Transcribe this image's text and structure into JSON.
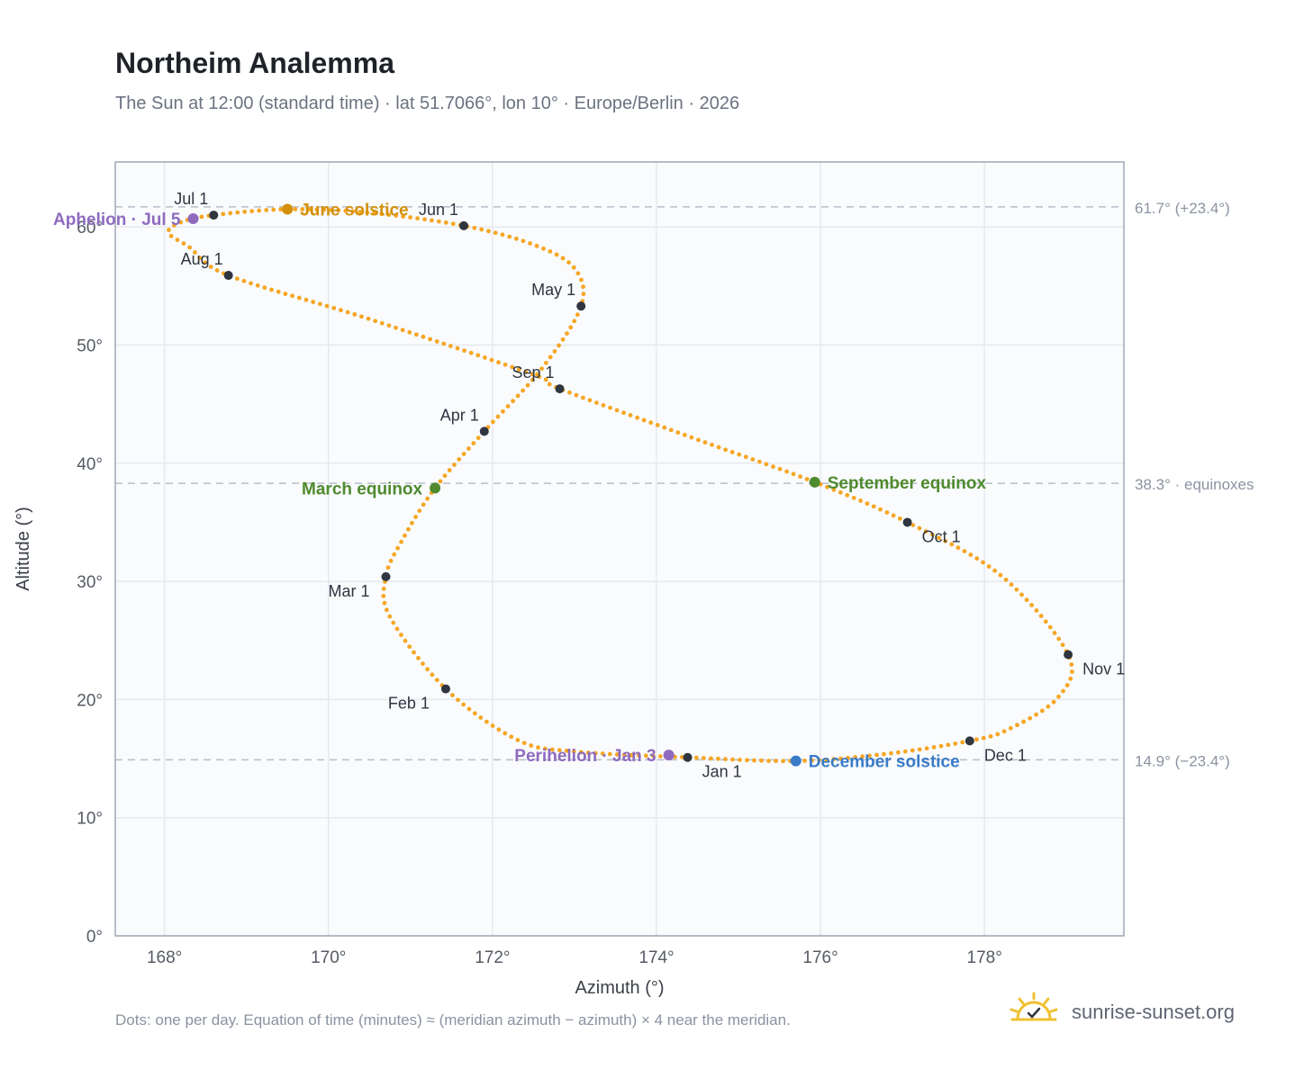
{
  "title": "Northeim Analemma",
  "subtitle": "The Sun at 12:00 (standard time) · lat 51.7066°, lon 10° · Europe/Berlin · 2026",
  "footnote": "Dots: one per day. Equation of time (minutes) ≈ (meridian azimuth − azimuth) × 4 near the meridian.",
  "brand": {
    "text": "sunrise-sunset.org",
    "icon": "sun-check-icon",
    "color": "#f0c030"
  },
  "colors": {
    "path": "#f5a623",
    "month_marker": "#2f3640",
    "solstice_june": "#d4900a",
    "solstice_december": "#3a7bc8",
    "equinox": "#4f8a2e",
    "apsis": "#8e6bbf",
    "guide": "#b8bec8",
    "grid": "#e6e9ee",
    "plot_bg": "#f9fbfd",
    "frame": "#a0a8b6"
  },
  "chart_data": {
    "type": "scatter",
    "xlabel": "Azimuth (°)",
    "ylabel": "Altitude (°)",
    "xlim": [
      167.4,
      179.7
    ],
    "ylim": [
      0,
      65.5
    ],
    "xticks": [
      168,
      170,
      172,
      174,
      176,
      178
    ],
    "xtick_labels": [
      "168°",
      "170°",
      "172°",
      "174°",
      "176°",
      "178°"
    ],
    "yticks": [
      0,
      10,
      20,
      30,
      40,
      50,
      60
    ],
    "ytick_labels": [
      "0°",
      "10°",
      "20°",
      "30°",
      "40°",
      "50°",
      "60°"
    ],
    "grid": true,
    "reference_lines": [
      {
        "y": 61.7,
        "label": "61.7° (+23.4°)"
      },
      {
        "y": 38.3,
        "label": "38.3° · equinoxes"
      },
      {
        "y": 14.9,
        "label": "14.9° (−23.4°)"
      }
    ],
    "path": {
      "name": "daily sun position",
      "dots_per_day": 1,
      "keypoints": [
        [
          174.4,
          15.1
        ],
        [
          173.0,
          15.6
        ],
        [
          172.3,
          16.6
        ],
        [
          171.43,
          20.9
        ],
        [
          170.75,
          27.0
        ],
        [
          170.7,
          30.4
        ],
        [
          170.9,
          33.5
        ],
        [
          171.3,
          37.9
        ],
        [
          171.9,
          42.7
        ],
        [
          172.6,
          48.0
        ],
        [
          173.08,
          53.3
        ],
        [
          173.0,
          56.5
        ],
        [
          172.5,
          58.5
        ],
        [
          171.65,
          60.1
        ],
        [
          170.5,
          61.2
        ],
        [
          169.5,
          61.5
        ],
        [
          168.6,
          61.0
        ],
        [
          168.2,
          60.4
        ],
        [
          168.05,
          59.5
        ],
        [
          168.3,
          58.3
        ],
        [
          168.78,
          55.9
        ],
        [
          170.5,
          52.2
        ],
        [
          172.5,
          47.5
        ],
        [
          172.82,
          46.3
        ],
        [
          174.5,
          42.0
        ],
        [
          175.93,
          38.4
        ],
        [
          177.06,
          35.0
        ],
        [
          178.2,
          30.5
        ],
        [
          179.02,
          23.8
        ],
        [
          178.9,
          20.2
        ],
        [
          178.3,
          17.5
        ],
        [
          177.82,
          16.5
        ],
        [
          176.8,
          15.4
        ],
        [
          175.7,
          14.8
        ],
        [
          174.4,
          15.1
        ]
      ],
      "color": "#f5a623"
    },
    "month_markers": [
      {
        "label": "Jan 1",
        "x": 174.38,
        "y": 15.1,
        "label_pos": "below-right"
      },
      {
        "label": "Feb 1",
        "x": 171.43,
        "y": 20.9,
        "label_pos": "below-left"
      },
      {
        "label": "Mar 1",
        "x": 170.7,
        "y": 30.4,
        "label_pos": "below-left"
      },
      {
        "label": "Apr 1",
        "x": 171.9,
        "y": 42.7,
        "label_pos": "above-left"
      },
      {
        "label": "May 1",
        "x": 173.08,
        "y": 53.3,
        "label_pos": "above-left"
      },
      {
        "label": "Jun 1",
        "x": 171.65,
        "y": 60.1,
        "label_pos": "above-left"
      },
      {
        "label": "Jul 1",
        "x": 168.6,
        "y": 61.0,
        "label_pos": "above-left"
      },
      {
        "label": "Aug 1",
        "x": 168.78,
        "y": 55.9,
        "label_pos": "above-left"
      },
      {
        "label": "Sep 1",
        "x": 172.82,
        "y": 46.3,
        "label_pos": "above-left"
      },
      {
        "label": "Oct 1",
        "x": 177.06,
        "y": 35.0,
        "label_pos": "below-right"
      },
      {
        "label": "Nov 1",
        "x": 179.02,
        "y": 23.8,
        "label_pos": "below-right"
      },
      {
        "label": "Dec 1",
        "x": 177.82,
        "y": 16.5,
        "label_pos": "below-right"
      }
    ],
    "events": [
      {
        "label": "June solstice",
        "x": 169.5,
        "y": 61.5,
        "color": "#d4900a",
        "label_pos": "right"
      },
      {
        "label": "December solstice",
        "x": 175.7,
        "y": 14.8,
        "color": "#3a7bc8",
        "label_pos": "right"
      },
      {
        "label": "March equinox",
        "x": 171.3,
        "y": 37.9,
        "color": "#4f8a2e",
        "label_pos": "left"
      },
      {
        "label": "September equinox",
        "x": 175.93,
        "y": 38.4,
        "color": "#4f8a2e",
        "label_pos": "right"
      },
      {
        "label": "Aphelion · Jul 5",
        "x": 168.35,
        "y": 60.7,
        "color": "#8e6bbf",
        "label_pos": "left"
      },
      {
        "label": "Perihelion · Jan 3",
        "x": 174.15,
        "y": 15.3,
        "color": "#8e6bbf",
        "label_pos": "left"
      }
    ]
  }
}
